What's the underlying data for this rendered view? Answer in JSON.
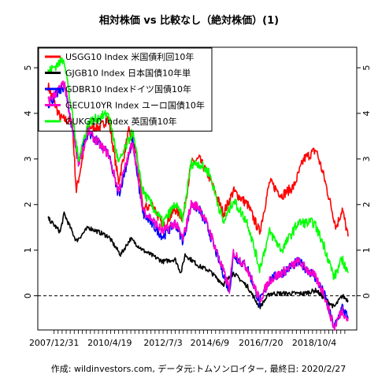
{
  "chart_data": {
    "type": "line",
    "title": "相対株価 vs 比較なし（絶対株価）(1)",
    "caption": "作成: wildinvestors.com, データ元:トムソンロイター, 最終日: 2020/2/27",
    "xlabel": "",
    "ylabel": "",
    "ylim": [
      -0.75,
      5.45
    ],
    "xlim": [
      "2007/10/1",
      "2020/2/27"
    ],
    "x_tick_labels": [
      "2007/12/31",
      "2010/4/19",
      "2012/7/3",
      "2014/6/9",
      "2016/7/20",
      "2018/10/4"
    ],
    "x_tick_dates": [
      "2007/12/31",
      "2010/4/19",
      "2012/7/3",
      "2014/6/9",
      "2016/7/20",
      "2018/10/4"
    ],
    "y_ticks": [
      0,
      1,
      2,
      3,
      4,
      5
    ],
    "y_tick_labels": [
      "0",
      "1",
      "2",
      "3",
      "4",
      "5"
    ],
    "reference_line": {
      "y": 0,
      "style": "dashed"
    },
    "legend_position": "top-left",
    "grid": false,
    "series": [
      {
        "name": "USGG10 Index 米国債利回10年",
        "color": "#ff0000",
        "points": [
          [
            "2007/10/1",
            4.6
          ],
          [
            "2008/4/1",
            3.9
          ],
          [
            "2008/10/1",
            3.8
          ],
          [
            "2008/12/1",
            2.3
          ],
          [
            "2009/6/1",
            3.7
          ],
          [
            "2009/12/1",
            3.7
          ],
          [
            "2010/4/1",
            3.9
          ],
          [
            "2010/9/1",
            2.5
          ],
          [
            "2011/2/1",
            3.6
          ],
          [
            "2011/6/1",
            3.1
          ],
          [
            "2011/9/1",
            1.9
          ],
          [
            "2012/2/1",
            2.0
          ],
          [
            "2012/7/1",
            1.5
          ],
          [
            "2013/1/1",
            1.9
          ],
          [
            "2013/5/1",
            1.7
          ],
          [
            "2013/9/1",
            2.9
          ],
          [
            "2014/1/1",
            3.0
          ],
          [
            "2014/6/1",
            2.6
          ],
          [
            "2015/1/1",
            1.8
          ],
          [
            "2015/6/1",
            2.3
          ],
          [
            "2016/1/1",
            2.0
          ],
          [
            "2016/7/1",
            1.4
          ],
          [
            "2016/12/1",
            2.5
          ],
          [
            "2017/6/1",
            2.2
          ],
          [
            "2017/12/1",
            2.4
          ],
          [
            "2018/5/1",
            3.0
          ],
          [
            "2018/11/1",
            3.2
          ],
          [
            "2019/3/1",
            2.6
          ],
          [
            "2019/9/1",
            1.5
          ],
          [
            "2019/12/1",
            1.9
          ],
          [
            "2020/2/27",
            1.3
          ]
        ]
      },
      {
        "name": "GJGB10 Index 日本国債10年単",
        "color": "#000000",
        "points": [
          [
            "2007/10/1",
            1.7
          ],
          [
            "2008/4/1",
            1.4
          ],
          [
            "2008/6/1",
            1.8
          ],
          [
            "2008/12/1",
            1.2
          ],
          [
            "2009/6/1",
            1.5
          ],
          [
            "2010/4/1",
            1.3
          ],
          [
            "2010/10/1",
            0.9
          ],
          [
            "2011/3/1",
            1.25
          ],
          [
            "2011/9/1",
            1.0
          ],
          [
            "2012/7/1",
            0.75
          ],
          [
            "2013/1/1",
            0.8
          ],
          [
            "2013/4/1",
            0.5
          ],
          [
            "2013/6/1",
            0.9
          ],
          [
            "2014/1/1",
            0.65
          ],
          [
            "2014/6/1",
            0.55
          ],
          [
            "2015/1/1",
            0.25
          ],
          [
            "2015/6/1",
            0.5
          ],
          [
            "2016/1/1",
            0.2
          ],
          [
            "2016/7/1",
            -0.25
          ],
          [
            "2016/12/1",
            0.05
          ],
          [
            "2017/6/1",
            0.05
          ],
          [
            "2018/5/1",
            0.05
          ],
          [
            "2018/11/1",
            0.12
          ],
          [
            "2019/3/1",
            -0.05
          ],
          [
            "2019/8/1",
            -0.25
          ],
          [
            "2019/12/1",
            0.0
          ],
          [
            "2020/2/27",
            -0.1
          ]
        ]
      },
      {
        "name": "GDBR10 Indexドイツ国債10年",
        "color": "#0000ff",
        "points": [
          [
            "2007/10/1",
            4.2
          ],
          [
            "2008/6/1",
            4.6
          ],
          [
            "2009/1/1",
            3.0
          ],
          [
            "2009/6/1",
            3.6
          ],
          [
            "2010/4/1",
            3.1
          ],
          [
            "2010/9/1",
            2.2
          ],
          [
            "2011/4/1",
            3.4
          ],
          [
            "2011/9/1",
            1.8
          ],
          [
            "2012/7/1",
            1.3
          ],
          [
            "2013/1/1",
            1.6
          ],
          [
            "2013/5/1",
            1.2
          ],
          [
            "2013/9/1",
            2.0
          ],
          [
            "2014/1/1",
            1.9
          ],
          [
            "2014/6/1",
            1.4
          ],
          [
            "2015/4/1",
            0.1
          ],
          [
            "2015/6/1",
            0.9
          ],
          [
            "2016/1/1",
            0.6
          ],
          [
            "2016/7/1",
            -0.15
          ],
          [
            "2016/12/1",
            0.35
          ],
          [
            "2017/6/1",
            0.5
          ],
          [
            "2018/2/1",
            0.75
          ],
          [
            "2018/10/1",
            0.45
          ],
          [
            "2019/3/1",
            0.05
          ],
          [
            "2019/8/1",
            -0.7
          ],
          [
            "2019/12/1",
            -0.25
          ],
          [
            "2020/2/27",
            -0.5
          ]
        ]
      },
      {
        "name": "GECU10YR Index ユーロ国債10年",
        "color": "#ff00cc",
        "points": [
          [
            "2007/10/1",
            4.25
          ],
          [
            "2008/6/1",
            4.65
          ],
          [
            "2009/1/1",
            2.9
          ],
          [
            "2009/6/1",
            3.6
          ],
          [
            "2010/4/1",
            3.1
          ],
          [
            "2010/9/1",
            2.3
          ],
          [
            "2011/4/1",
            3.4
          ],
          [
            "2011/9/1",
            1.9
          ],
          [
            "2012/7/1",
            1.4
          ],
          [
            "2013/1/1",
            1.6
          ],
          [
            "2013/5/1",
            1.25
          ],
          [
            "2013/9/1",
            2.0
          ],
          [
            "2014/1/1",
            1.95
          ],
          [
            "2014/6/1",
            1.45
          ],
          [
            "2015/4/1",
            0.15
          ],
          [
            "2015/6/1",
            0.95
          ],
          [
            "2016/1/1",
            0.6
          ],
          [
            "2016/7/1",
            -0.1
          ],
          [
            "2016/12/1",
            0.35
          ],
          [
            "2017/6/1",
            0.5
          ],
          [
            "2018/2/1",
            0.75
          ],
          [
            "2018/10/1",
            0.45
          ],
          [
            "2019/3/1",
            0.05
          ],
          [
            "2019/8/1",
            -0.7
          ],
          [
            "2019/12/1",
            -0.3
          ],
          [
            "2020/2/27",
            -0.55
          ]
        ]
      },
      {
        "name": "GUKG10 Index 英国債10年",
        "color": "#00ff00",
        "points": [
          [
            "2007/10/1",
            4.9
          ],
          [
            "2008/6/1",
            5.2
          ],
          [
            "2009/1/1",
            3.0
          ],
          [
            "2009/6/1",
            3.8
          ],
          [
            "2010/4/1",
            4.0
          ],
          [
            "2010/9/1",
            2.9
          ],
          [
            "2011/4/1",
            3.6
          ],
          [
            "2011/9/1",
            2.3
          ],
          [
            "2012/7/1",
            1.6
          ],
          [
            "2013/1/1",
            2.0
          ],
          [
            "2013/5/1",
            1.7
          ],
          [
            "2013/9/1",
            2.9
          ],
          [
            "2014/1/1",
            2.9
          ],
          [
            "2014/6/1",
            2.7
          ],
          [
            "2015/1/1",
            1.6
          ],
          [
            "2015/6/1",
            2.1
          ],
          [
            "2016/1/1",
            1.6
          ],
          [
            "2016/7/1",
            0.6
          ],
          [
            "2016/12/1",
            1.4
          ],
          [
            "2017/6/1",
            1.0
          ],
          [
            "2018/2/1",
            1.6
          ],
          [
            "2018/10/1",
            1.6
          ],
          [
            "2019/3/1",
            1.1
          ],
          [
            "2019/8/1",
            0.4
          ],
          [
            "2019/12/1",
            0.8
          ],
          [
            "2020/2/27",
            0.5
          ]
        ]
      }
    ]
  }
}
